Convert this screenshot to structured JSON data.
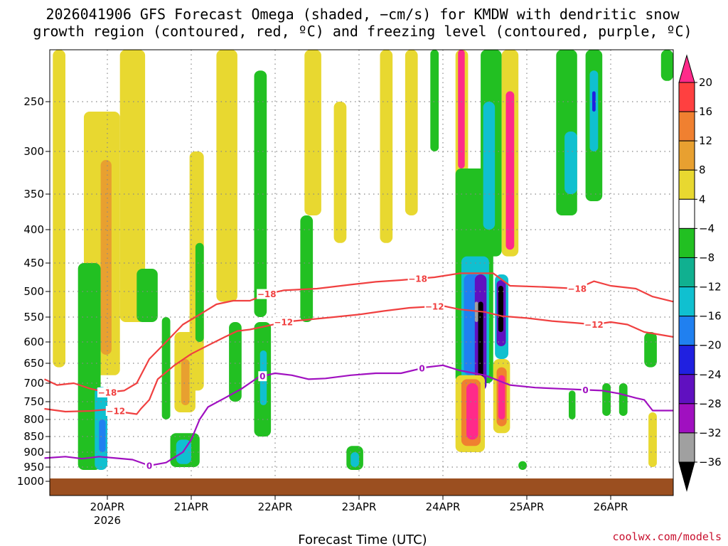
{
  "chart_data": {
    "type": "time-height",
    "title_line1": "2026041906 GFS Forecast Omega (shaded, −cm/s) for KMDW with dendritic snow",
    "title_line2": "growth region (contoured, red, ºC) and freezing level (contoured, purple, ºC)",
    "xlabel": "Forecast Time (UTC)",
    "credit": "coolwx.com/models",
    "x_start_day": 19.25,
    "x_end_day": 26.75,
    "x_ticks": [
      {
        "day": 20,
        "label": "20APR",
        "sub": "2026"
      },
      {
        "day": 21,
        "label": "21APR",
        "sub": ""
      },
      {
        "day": 22,
        "label": "22APR",
        "sub": ""
      },
      {
        "day": 23,
        "label": "23APR",
        "sub": ""
      },
      {
        "day": 24,
        "label": "24APR",
        "sub": ""
      },
      {
        "day": 25,
        "label": "25APR",
        "sub": ""
      },
      {
        "day": 26,
        "label": "26APR",
        "sub": ""
      }
    ],
    "y_top_hpa": 200,
    "y_bottom_hpa": 1000,
    "y_ticks": [
      250,
      300,
      350,
      400,
      450,
      500,
      550,
      600,
      650,
      700,
      750,
      800,
      850,
      900,
      950,
      1000
    ],
    "colorbar": {
      "labels": [
        "20",
        "16",
        "12",
        "8",
        "4",
        "−4",
        "−8",
        "−12",
        "−16",
        "−20",
        "−24",
        "−28",
        "−32",
        "−36"
      ],
      "colors": [
        "#ff2a8a",
        "#ff4040",
        "#f08030",
        "#e8a030",
        "#e8d830",
        "#ffffff",
        "#22c022",
        "#10b090",
        "#10c0d0",
        "#2080f0",
        "#2020e0",
        "#6010c0",
        "#a010c0",
        "#a0a0a0",
        "#000000"
      ]
    },
    "contours": [
      {
        "name": "minus-18",
        "label": "−18",
        "color": "#f04040",
        "points": [
          [
            19.25,
            690
          ],
          [
            19.4,
            705
          ],
          [
            19.6,
            700
          ],
          [
            19.8,
            715
          ],
          [
            20.0,
            725
          ],
          [
            20.2,
            720
          ],
          [
            20.35,
            700
          ],
          [
            20.5,
            640
          ],
          [
            20.7,
            600
          ],
          [
            20.9,
            565
          ],
          [
            21.1,
            545
          ],
          [
            21.3,
            525
          ],
          [
            21.5,
            518
          ],
          [
            21.7,
            518
          ],
          [
            21.9,
            505
          ],
          [
            22.1,
            498
          ],
          [
            22.5,
            495
          ],
          [
            22.9,
            488
          ],
          [
            23.2,
            483
          ],
          [
            23.5,
            480
          ],
          [
            23.9,
            475
          ],
          [
            24.2,
            468
          ],
          [
            24.4,
            468
          ],
          [
            24.6,
            468
          ],
          [
            24.8,
            490
          ],
          [
            25.2,
            492
          ],
          [
            25.6,
            495
          ],
          [
            25.8,
            482
          ],
          [
            26.0,
            490
          ],
          [
            26.3,
            495
          ],
          [
            26.5,
            510
          ],
          [
            26.75,
            520
          ]
        ],
        "label_days": [
          20.0,
          21.9,
          23.7,
          25.6
        ]
      },
      {
        "name": "minus-12",
        "label": "−12",
        "color": "#f04040",
        "points": [
          [
            19.25,
            770
          ],
          [
            19.5,
            778
          ],
          [
            19.8,
            776
          ],
          [
            20.0,
            772
          ],
          [
            20.2,
            780
          ],
          [
            20.35,
            785
          ],
          [
            20.4,
            770
          ],
          [
            20.5,
            745
          ],
          [
            20.6,
            690
          ],
          [
            20.8,
            655
          ],
          [
            21.0,
            628
          ],
          [
            21.2,
            608
          ],
          [
            21.4,
            590
          ],
          [
            21.55,
            578
          ],
          [
            21.7,
            575
          ],
          [
            21.9,
            568
          ],
          [
            22.1,
            560
          ],
          [
            22.4,
            555
          ],
          [
            22.7,
            550
          ],
          [
            23.0,
            545
          ],
          [
            23.3,
            538
          ],
          [
            23.6,
            532
          ],
          [
            23.8,
            530
          ],
          [
            24.0,
            528
          ],
          [
            24.2,
            535
          ],
          [
            24.5,
            540
          ],
          [
            24.7,
            548
          ],
          [
            25.0,
            552
          ],
          [
            25.3,
            558
          ],
          [
            25.6,
            562
          ],
          [
            25.8,
            565
          ],
          [
            26.0,
            560
          ],
          [
            26.2,
            565
          ],
          [
            26.4,
            580
          ],
          [
            26.75,
            590
          ]
        ],
        "label_days": [
          20.1,
          22.1,
          23.9,
          25.8
        ]
      },
      {
        "name": "freezing-level",
        "label": "0",
        "color": "#a010c0",
        "points": [
          [
            19.25,
            920
          ],
          [
            19.5,
            915
          ],
          [
            19.7,
            922
          ],
          [
            19.9,
            915
          ],
          [
            20.1,
            920
          ],
          [
            20.3,
            925
          ],
          [
            20.5,
            945
          ],
          [
            20.7,
            935
          ],
          [
            20.9,
            900
          ],
          [
            21.0,
            860
          ],
          [
            21.1,
            800
          ],
          [
            21.2,
            765
          ],
          [
            21.4,
            740
          ],
          [
            21.6,
            715
          ],
          [
            21.8,
            685
          ],
          [
            22.0,
            675
          ],
          [
            22.2,
            680
          ],
          [
            22.4,
            690
          ],
          [
            22.6,
            688
          ],
          [
            22.9,
            680
          ],
          [
            23.2,
            675
          ],
          [
            23.5,
            675
          ],
          [
            23.8,
            660
          ],
          [
            24.0,
            655
          ],
          [
            24.2,
            668
          ],
          [
            24.5,
            680
          ],
          [
            24.8,
            705
          ],
          [
            25.1,
            712
          ],
          [
            25.4,
            715
          ],
          [
            25.7,
            718
          ],
          [
            25.9,
            720
          ],
          [
            26.1,
            728
          ],
          [
            26.3,
            740
          ],
          [
            26.4,
            745
          ],
          [
            26.5,
            775
          ],
          [
            26.75,
            775
          ]
        ],
        "label_days": [
          20.5,
          21.85,
          23.75,
          25.7
        ]
      }
    ],
    "omega_cells": [
      {
        "d0": 19.35,
        "d1": 19.5,
        "p0": 200,
        "p1": 660,
        "c": "#e8d830"
      },
      {
        "d0": 19.72,
        "d1": 20.15,
        "p0": 260,
        "p1": 680,
        "c": "#e8d830"
      },
      {
        "d0": 19.92,
        "d1": 20.05,
        "p0": 310,
        "p1": 630,
        "c": "#e8a030"
      },
      {
        "d0": 19.65,
        "d1": 19.92,
        "p0": 450,
        "p1": 960,
        "c": "#22c022"
      },
      {
        "d0": 19.85,
        "d1": 20.0,
        "p0": 710,
        "p1": 960,
        "c": "#10c0d0"
      },
      {
        "d0": 19.9,
        "d1": 19.98,
        "p0": 800,
        "p1": 900,
        "c": "#2080f0"
      },
      {
        "d0": 20.15,
        "d1": 20.45,
        "p0": 200,
        "p1": 560,
        "c": "#e8d830"
      },
      {
        "d0": 20.35,
        "d1": 20.6,
        "p0": 460,
        "p1": 560,
        "c": "#22c022"
      },
      {
        "d0": 20.65,
        "d1": 20.75,
        "p0": 550,
        "p1": 800,
        "c": "#22c022"
      },
      {
        "d0": 20.8,
        "d1": 21.05,
        "p0": 580,
        "p1": 780,
        "c": "#e8d830"
      },
      {
        "d0": 20.88,
        "d1": 20.98,
        "p0": 640,
        "p1": 760,
        "c": "#e8a030"
      },
      {
        "d0": 20.75,
        "d1": 21.1,
        "p0": 840,
        "p1": 950,
        "c": "#22c022"
      },
      {
        "d0": 20.82,
        "d1": 21.0,
        "p0": 860,
        "p1": 940,
        "c": "#10c0d0"
      },
      {
        "d0": 20.98,
        "d1": 21.15,
        "p0": 300,
        "p1": 720,
        "c": "#e8d830"
      },
      {
        "d0": 21.05,
        "d1": 21.15,
        "p0": 420,
        "p1": 600,
        "c": "#22c022"
      },
      {
        "d0": 21.3,
        "d1": 21.55,
        "p0": 200,
        "p1": 520,
        "c": "#e8d830"
      },
      {
        "d0": 21.45,
        "d1": 21.6,
        "p0": 560,
        "p1": 750,
        "c": "#22c022"
      },
      {
        "d0": 21.75,
        "d1": 21.9,
        "p0": 220,
        "p1": 550,
        "c": "#22c022"
      },
      {
        "d0": 21.75,
        "d1": 21.95,
        "p0": 560,
        "p1": 850,
        "c": "#22c022"
      },
      {
        "d0": 21.82,
        "d1": 21.9,
        "p0": 620,
        "p1": 760,
        "c": "#10c0d0"
      },
      {
        "d0": 22.3,
        "d1": 22.45,
        "p0": 380,
        "p1": 560,
        "c": "#22c022"
      },
      {
        "d0": 22.35,
        "d1": 22.55,
        "p0": 200,
        "p1": 380,
        "c": "#e8d830"
      },
      {
        "d0": 22.7,
        "d1": 22.85,
        "p0": 250,
        "p1": 420,
        "c": "#e8d830"
      },
      {
        "d0": 22.85,
        "d1": 23.05,
        "p0": 880,
        "p1": 960,
        "c": "#22c022"
      },
      {
        "d0": 22.9,
        "d1": 23.0,
        "p0": 900,
        "p1": 950,
        "c": "#10c0d0"
      },
      {
        "d0": 23.25,
        "d1": 23.4,
        "p0": 200,
        "p1": 420,
        "c": "#e8d830"
      },
      {
        "d0": 23.55,
        "d1": 23.7,
        "p0": 200,
        "p1": 380,
        "c": "#e8d830"
      },
      {
        "d0": 23.85,
        "d1": 23.95,
        "p0": 200,
        "p1": 300,
        "c": "#22c022"
      },
      {
        "d0": 24.15,
        "d1": 24.3,
        "p0": 200,
        "p1": 480,
        "c": "#e8d830"
      },
      {
        "d0": 24.18,
        "d1": 24.26,
        "p0": 200,
        "p1": 320,
        "c": "#ff2a8a"
      },
      {
        "d0": 24.15,
        "d1": 24.6,
        "p0": 320,
        "p1": 700,
        "c": "#22c022"
      },
      {
        "d0": 24.22,
        "d1": 24.55,
        "p0": 440,
        "p1": 690,
        "c": "#10c0d0"
      },
      {
        "d0": 24.25,
        "d1": 24.45,
        "p0": 470,
        "p1": 680,
        "c": "#2080f0"
      },
      {
        "d0": 24.38,
        "d1": 24.52,
        "p0": 470,
        "p1": 720,
        "c": "#6010c0"
      },
      {
        "d0": 24.42,
        "d1": 24.48,
        "p0": 520,
        "p1": 700,
        "c": "#000000"
      },
      {
        "d0": 24.38,
        "d1": 24.42,
        "p0": 520,
        "p1": 560,
        "c": "#a0a0a0"
      },
      {
        "d0": 24.45,
        "d1": 24.7,
        "p0": 200,
        "p1": 440,
        "c": "#22c022"
      },
      {
        "d0": 24.48,
        "d1": 24.62,
        "p0": 250,
        "p1": 400,
        "c": "#10c0d0"
      },
      {
        "d0": 24.62,
        "d1": 24.78,
        "p0": 470,
        "p1": 640,
        "c": "#10c0d0"
      },
      {
        "d0": 24.64,
        "d1": 24.75,
        "p0": 480,
        "p1": 610,
        "c": "#6010c0"
      },
      {
        "d0": 24.66,
        "d1": 24.72,
        "p0": 490,
        "p1": 580,
        "c": "#000000"
      },
      {
        "d0": 24.7,
        "d1": 24.9,
        "p0": 200,
        "p1": 440,
        "c": "#e8d830"
      },
      {
        "d0": 24.75,
        "d1": 24.85,
        "p0": 240,
        "p1": 430,
        "c": "#ff2a8a"
      },
      {
        "d0": 24.15,
        "d1": 24.5,
        "p0": 680,
        "p1": 900,
        "c": "#e8d830"
      },
      {
        "d0": 24.22,
        "d1": 24.45,
        "p0": 690,
        "p1": 880,
        "c": "#f08030"
      },
      {
        "d0": 24.28,
        "d1": 24.42,
        "p0": 700,
        "p1": 860,
        "c": "#ff2a8a"
      },
      {
        "d0": 24.6,
        "d1": 24.8,
        "p0": 640,
        "p1": 840,
        "c": "#e8d830"
      },
      {
        "d0": 24.64,
        "d1": 24.76,
        "p0": 660,
        "p1": 820,
        "c": "#f08030"
      },
      {
        "d0": 24.66,
        "d1": 24.74,
        "p0": 680,
        "p1": 800,
        "c": "#ff2a8a"
      },
      {
        "d0": 24.9,
        "d1": 25.0,
        "p0": 930,
        "p1": 960,
        "c": "#22c022"
      },
      {
        "d0": 25.35,
        "d1": 25.6,
        "p0": 200,
        "p1": 380,
        "c": "#22c022"
      },
      {
        "d0": 25.45,
        "d1": 25.6,
        "p0": 280,
        "p1": 350,
        "c": "#10c0d0"
      },
      {
        "d0": 25.7,
        "d1": 25.9,
        "p0": 200,
        "p1": 360,
        "c": "#22c022"
      },
      {
        "d0": 25.75,
        "d1": 25.85,
        "p0": 220,
        "p1": 300,
        "c": "#10c0d0"
      },
      {
        "d0": 25.78,
        "d1": 25.82,
        "p0": 240,
        "p1": 260,
        "c": "#2020e0"
      },
      {
        "d0": 25.5,
        "d1": 25.58,
        "p0": 720,
        "p1": 800,
        "c": "#22c022"
      },
      {
        "d0": 25.9,
        "d1": 26.0,
        "p0": 700,
        "p1": 790,
        "c": "#22c022"
      },
      {
        "d0": 26.1,
        "d1": 26.2,
        "p0": 700,
        "p1": 790,
        "c": "#22c022"
      },
      {
        "d0": 26.4,
        "d1": 26.55,
        "p0": 580,
        "p1": 660,
        "c": "#22c022"
      },
      {
        "d0": 26.45,
        "d1": 26.55,
        "p0": 780,
        "p1": 950,
        "c": "#e8d830"
      },
      {
        "d0": 26.6,
        "d1": 26.75,
        "p0": 200,
        "p1": 230,
        "c": "#22c022"
      }
    ]
  }
}
